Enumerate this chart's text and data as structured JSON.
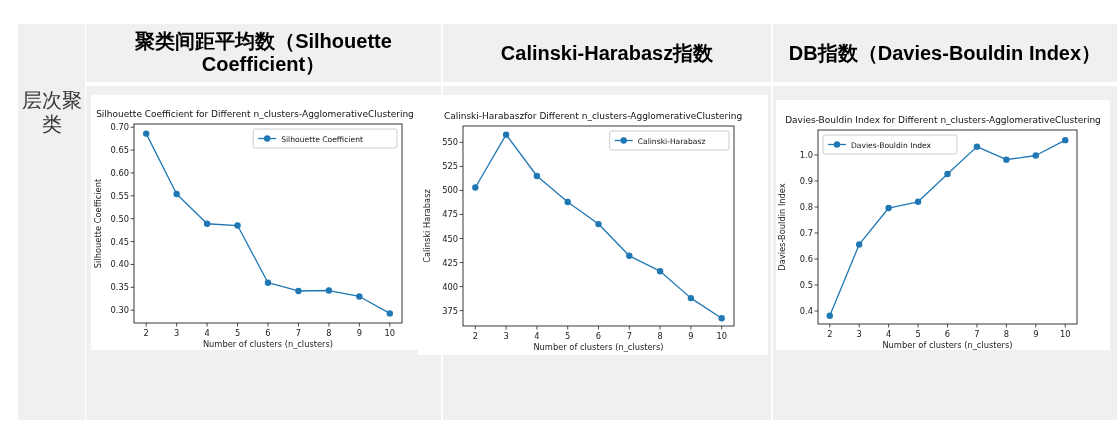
{
  "chart_data": [
    {
      "type": "line",
      "title": "Silhouette Coefficient for Different n_clusters-AgglomerativeClustering",
      "xlabel": "Number of clusters (n_clusters)",
      "ylabel": "Silhouette Coefficient",
      "annotations": [
        "聚类间距平均数（Silhouette Coefficient）",
        "层次聚类"
      ],
      "x": [
        2,
        3,
        4,
        5,
        6,
        7,
        8,
        9,
        10
      ],
      "series": [
        {
          "name": "Silhouette Coefficient",
          "color": "#1f77b4",
          "values": [
            0.686,
            0.554,
            0.489,
            0.485,
            0.36,
            0.342,
            0.343,
            0.33,
            0.293
          ]
        }
      ],
      "xlim": [
        1.6,
        10.4
      ],
      "ylim": [
        0.272,
        0.707
      ],
      "xticks": [
        2,
        3,
        4,
        5,
        6,
        7,
        8,
        9,
        10
      ],
      "yticks": [
        {
          "value": 0.3,
          "label": "0.30"
        },
        0.35,
        {
          "value": 0.4,
          "label": "0.40"
        },
        0.45,
        {
          "value": 0.5,
          "label": "0.50"
        },
        0.55,
        {
          "value": 0.6,
          "label": "0.60"
        },
        0.65,
        {
          "value": 0.7,
          "label": "0.70"
        }
      ],
      "marker": "circle",
      "legend": "top right"
    },
    {
      "type": "line",
      "title": "Calinski-Harabaszfor Different n_clusters-AgglomerativeClustering",
      "xlabel": "Number of clusters (n_clusters)",
      "ylabel": "Calinski Harabasz",
      "annotations": [
        "Calinski-Harabasz指数"
      ],
      "x": [
        2,
        3,
        4,
        5,
        6,
        7,
        8,
        9,
        10
      ],
      "series": [
        {
          "name": "Calinski-Harabasz",
          "color": "#1f77b4",
          "values": [
            503,
            558,
            515,
            488,
            465,
            432,
            416,
            388,
            367
          ]
        }
      ],
      "xlim": [
        1.6,
        10.4
      ],
      "ylim": [
        359,
        567
      ],
      "xticks": [
        2,
        3,
        4,
        5,
        6,
        7,
        8,
        9,
        10
      ],
      "yticks": [
        375,
        400,
        425,
        450,
        475,
        500,
        525,
        550
      ],
      "marker": "circle",
      "legend": "top right"
    },
    {
      "type": "line",
      "title": "Davies-Bouldin Index for Different n_clusters-AgglomerativeClustering",
      "xlabel": "Number of clusters (n_clusters)",
      "ylabel": "Davies-Bouldin Index",
      "annotations": [
        "DB指数（Davies-Bouldin Index）"
      ],
      "x": [
        2,
        3,
        4,
        5,
        6,
        7,
        8,
        9,
        10
      ],
      "series": [
        {
          "name": "Davies-Bouldin Index",
          "color": "#1f77b4",
          "values": [
            0.382,
            0.656,
            0.796,
            0.82,
            0.927,
            1.032,
            0.982,
            0.998,
            1.057
          ]
        }
      ],
      "xlim": [
        1.6,
        10.4
      ],
      "ylim": [
        0.35,
        1.096
      ],
      "xticks": [
        2,
        3,
        4,
        5,
        6,
        7,
        8,
        9,
        10
      ],
      "yticks": [
        0.4,
        0.5,
        0.6,
        0.7,
        0.8,
        0.9,
        {
          "value": 1.0,
          "label": "1.0"
        }
      ],
      "marker": "circle",
      "legend": "top left"
    }
  ]
}
